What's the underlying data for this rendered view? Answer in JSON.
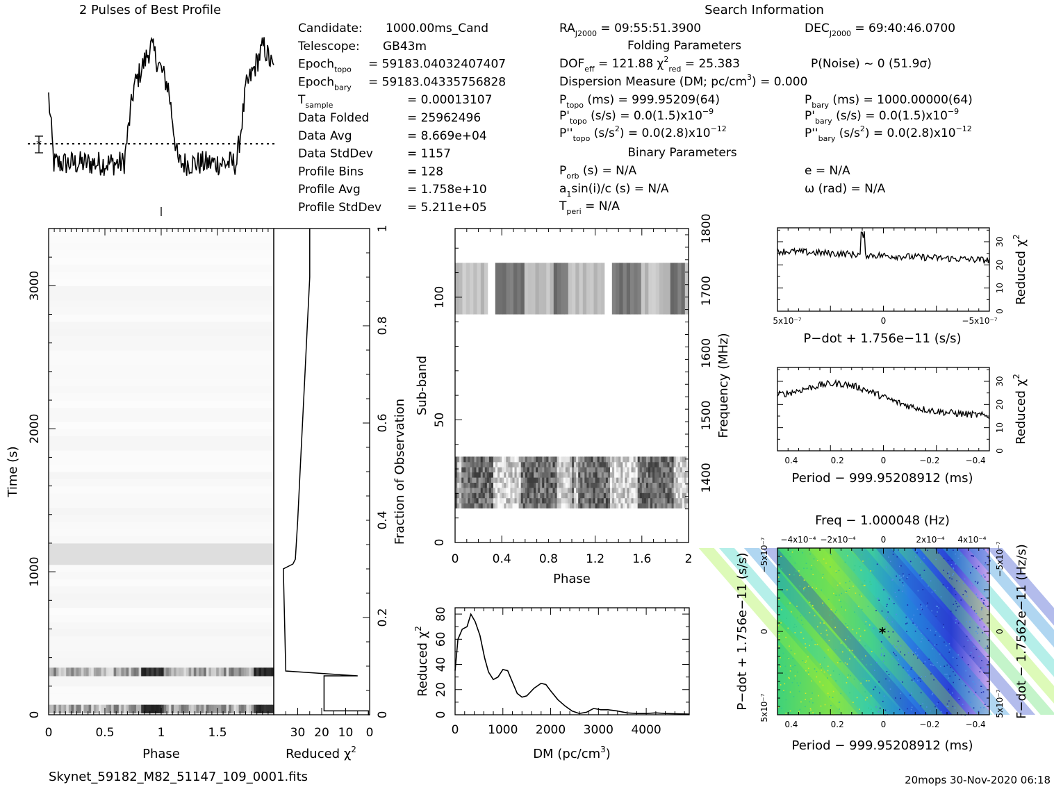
{
  "profile_title": "2 Pulses of Best Profile",
  "search_title": "Search Information",
  "info_col1": [
    {
      "label": "Candidate:",
      "value": "1000.00ms_Cand"
    },
    {
      "label": "Telescope:",
      "value": "GB43m"
    },
    {
      "label": "Epoch",
      "sub": "topo",
      "value": "= 59183.04032407407"
    },
    {
      "label": "Epoch",
      "sub": "bary",
      "value": "= 59183.04335756828"
    },
    {
      "label": "T",
      "sub": "sample",
      "value": "=   0.00013107"
    },
    {
      "label": "Data Folded",
      "value": "=   25962496"
    },
    {
      "label": "Data Avg",
      "value": "=   8.669e+04"
    },
    {
      "label": "Data StdDev",
      "value": "=   1157"
    },
    {
      "label": "Profile Bins",
      "value": "=   128"
    },
    {
      "label": "Profile Avg",
      "value": "=   1.758e+10"
    },
    {
      "label": "Profile StdDev",
      "value": "=   5.211e+05"
    }
  ],
  "info_col2": {
    "ra": "RA_J2000 = 09:55:51.3900",
    "folding_title": "Folding Parameters",
    "dof": "DOF_eff = 121.88   χ²_red = 25.383",
    "dm_line": "Dispersion Measure (DM; pc/cm³) = 0.000",
    "ptopo": "P_topo (ms) =  999.95209(64)",
    "pdtopo": "P'_topo (s/s) = 0.0(1.5)x10⁻⁹",
    "pddtopo": "P''_topo (s/s²) = 0.0(2.8)x10⁻¹²",
    "binary_title": "Binary Parameters",
    "porb": "P_orb (s) = N/A",
    "a1": "a₁sin(i)/c (s) = N/A",
    "tperi": "T_peri = N/A"
  },
  "info_col3": {
    "dec": "DEC_J2000 = 69:40:46.0700",
    "pnoise": "P(Noise) ~ 0    (51.9σ)",
    "pbary": "P_bary (ms) =  1000.00000(64)",
    "pdbary": "P'_bary (s/s) = 0.0(1.5)x10⁻⁹",
    "pddbary": "P''_bary (s/s²) = 0.0(2.8)x10⁻¹²",
    "ecc": "e = N/A",
    "omega": "ω (rad) = N/A"
  },
  "footer_left": "Skynet_59182_M82_51147_109_0001.fits",
  "footer_right": "20mops 30-Nov-2020 06:18",
  "chart_data": [
    {
      "type": "line",
      "id": "profile",
      "title": "2 Pulses of Best Profile",
      "x_range": [
        0,
        2
      ],
      "pulse_phase_centers": [
        0.91,
        1.91
      ],
      "pulse_width": 0.16,
      "baseline_level": 0.25,
      "pulse_level": 0.9
    },
    {
      "type": "heatmap",
      "id": "time-phase",
      "xlabel": "Phase",
      "ylabel": "Time (s)",
      "xlim": [
        0,
        2
      ],
      "ylim": [
        0,
        3400
      ],
      "x_ticks": [
        "0",
        "0.5",
        "1",
        "1.5"
      ],
      "y_ticks": [
        "0",
        "1000",
        "2000",
        "3000"
      ],
      "dark_rows_time": [
        40,
        300
      ],
      "grey_rows_time": [
        1050,
        1100,
        1160
      ]
    },
    {
      "type": "line",
      "id": "time-chi2",
      "xlabel": "Reduced χ²",
      "ylabel": "Fraction of Observation",
      "x_ticks": [
        "30",
        "20",
        "10",
        "0"
      ],
      "y_ticks": [
        "0",
        "0.2",
        "0.4",
        "0.6",
        "0.8",
        "1"
      ],
      "x_reversed": true,
      "xlim": [
        0,
        40
      ],
      "points": [
        [
          0,
          0.0
        ],
        [
          0.5,
          0.0
        ],
        [
          0.5,
          0.008
        ],
        [
          19,
          0.008
        ],
        [
          19,
          0.08
        ],
        [
          6,
          0.08
        ],
        [
          5,
          0.08
        ],
        [
          35,
          0.09
        ],
        [
          36,
          0.3
        ],
        [
          32,
          0.31
        ],
        [
          31,
          0.32
        ],
        [
          30,
          0.4
        ],
        [
          29,
          0.5
        ],
        [
          28,
          0.6
        ],
        [
          27,
          0.7
        ],
        [
          26,
          0.8
        ],
        [
          25,
          0.9
        ],
        [
          25,
          1.0
        ]
      ]
    },
    {
      "type": "heatmap",
      "id": "subband-phase",
      "xlabel": "Phase",
      "ylabel": "Sub-band",
      "y2label": "Frequency (MHz)",
      "xlim": [
        0,
        2
      ],
      "ylim": [
        0,
        128
      ],
      "x_ticks": [
        "0",
        "0.4",
        "0.8",
        "1.2",
        "1.6",
        "2"
      ],
      "y_ticks": [
        "0",
        "50",
        "100"
      ],
      "y2_ticks": [
        "1400",
        "1500",
        "1600",
        "1700",
        "1800"
      ],
      "bands": [
        [
          14,
          35
        ],
        [
          93,
          114
        ]
      ]
    },
    {
      "type": "line",
      "id": "dm-chi2",
      "xlabel": "DM (pc/cm³)",
      "ylabel": "Reduced χ²",
      "xlim": [
        0,
        4900
      ],
      "ylim": [
        0,
        85
      ],
      "x_ticks": [
        "0",
        "1000",
        "2000",
        "3000",
        "4000"
      ],
      "y_ticks": [
        "0",
        "20",
        "40",
        "60",
        "80"
      ],
      "points": [
        [
          0,
          35
        ],
        [
          60,
          60
        ],
        [
          150,
          68
        ],
        [
          250,
          70
        ],
        [
          330,
          80
        ],
        [
          420,
          74
        ],
        [
          520,
          63
        ],
        [
          620,
          45
        ],
        [
          700,
          34
        ],
        [
          800,
          28
        ],
        [
          900,
          30
        ],
        [
          1000,
          36
        ],
        [
          1100,
          35
        ],
        [
          1200,
          26
        ],
        [
          1300,
          17
        ],
        [
          1400,
          14
        ],
        [
          1500,
          15
        ],
        [
          1650,
          21
        ],
        [
          1800,
          25
        ],
        [
          1900,
          24
        ],
        [
          2000,
          19
        ],
        [
          2150,
          12
        ],
        [
          2300,
          7
        ],
        [
          2450,
          3
        ],
        [
          2600,
          1
        ],
        [
          2750,
          2
        ],
        [
          2900,
          5
        ],
        [
          3050,
          4
        ],
        [
          3200,
          4
        ],
        [
          3400,
          3
        ],
        [
          3600,
          1.5
        ],
        [
          3800,
          1
        ],
        [
          4000,
          1
        ],
        [
          4200,
          1.5
        ],
        [
          4400,
          1
        ],
        [
          4900,
          0.5
        ]
      ]
    },
    {
      "type": "line",
      "id": "pdot-chi2",
      "xlabel": "P-dot + 1.756e-11 (s/s)",
      "ylabel": "Reduced χ²",
      "x_ticks": [
        "5x10⁻⁷",
        "0",
        "−5x10⁻⁷"
      ],
      "y_ticks": [
        "0",
        "10",
        "20",
        "30"
      ],
      "xlim": [
        5e-07,
        -5e-07
      ],
      "ylim": [
        0,
        36
      ]
    },
    {
      "type": "line",
      "id": "period-chi2",
      "xlabel": "Period − 999.95208912 (ms)",
      "ylabel": "Reduced χ²",
      "x_ticks": [
        "0.4",
        "0.2",
        "0",
        "−0.2",
        "−0.4"
      ],
      "y_ticks": [
        "0",
        "10",
        "20",
        "30"
      ],
      "xlim": [
        0.46,
        -0.46
      ],
      "ylim": [
        0,
        36
      ]
    },
    {
      "type": "heatmap",
      "id": "period-pdot",
      "title": "Freq − 1.000048 (Hz)",
      "xlabel": "Period − 999.95208912 (ms)",
      "ylabel": "P-dot + 1.756e-11 (s/s)",
      "y2label": "F-dot − 1.7562e-11 (Hz/s)",
      "x_ticks": [
        "0.4",
        "0.2",
        "0",
        "−0.2",
        "−0.4"
      ],
      "top_ticks": [
        "−4x10⁻⁴",
        "−2x10⁻⁴",
        "0",
        "2x10⁻⁴",
        "4x10⁻⁴"
      ],
      "y_ticks": [
        "5x10⁻⁷",
        "0",
        "−5x10⁻⁷"
      ],
      "y2_ticks": [
        "−5x10⁻⁷",
        "0",
        "5x10⁻⁷"
      ],
      "xlim": [
        0.46,
        -0.46
      ],
      "ylim": [
        -5e-07,
        5e-07
      ]
    }
  ]
}
